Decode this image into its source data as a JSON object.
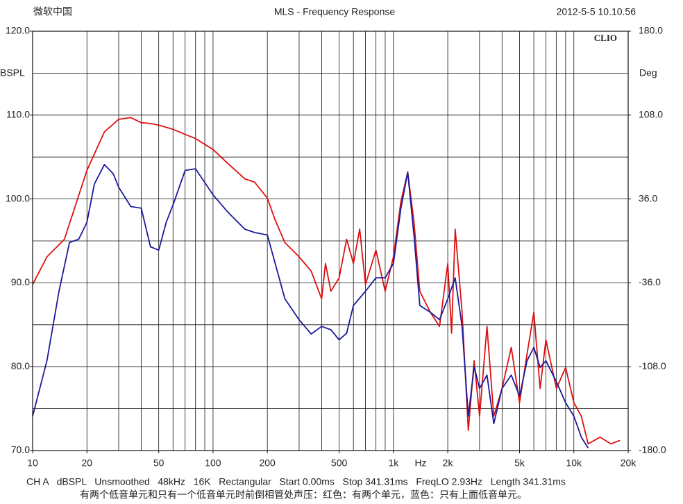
{
  "chart_data": {
    "type": "line",
    "title": "MLS - Frequency Response",
    "header_left": "微软中国",
    "header_right": "2012-5-5 10.10.56",
    "brand": "CLIO",
    "ylabel": "BSPL",
    "y2label": "Deg",
    "xlabel": "Hz",
    "xscale": "log",
    "xlim": [
      10,
      20000
    ],
    "xticks": [
      10,
      20,
      50,
      100,
      200,
      500,
      {
        "value": 1000,
        "label": "1k"
      },
      {
        "value": 2000,
        "label": "2k"
      },
      {
        "value": 5000,
        "label": "5k"
      },
      {
        "value": 10000,
        "label": "10k"
      },
      {
        "value": 20000,
        "label": "20k"
      }
    ],
    "xgrid": [
      10,
      20,
      30,
      40,
      50,
      60,
      70,
      80,
      90,
      100,
      200,
      300,
      400,
      500,
      600,
      700,
      800,
      900,
      1000,
      2000,
      3000,
      4000,
      5000,
      6000,
      7000,
      8000,
      9000,
      10000,
      20000
    ],
    "ylim": [
      70,
      120
    ],
    "yticks": [
      {
        "value": 70,
        "label": "70.0"
      },
      {
        "value": 80,
        "label": "80.0"
      },
      {
        "value": 90,
        "label": "90.0"
      },
      {
        "value": 100,
        "label": "100.0"
      },
      {
        "value": 110,
        "label": "110.0"
      },
      {
        "value": 120,
        "label": "120.0"
      }
    ],
    "ygrid": [
      70,
      75,
      80,
      85,
      90,
      95,
      100,
      105,
      110,
      115,
      120
    ],
    "y2lim": [
      -180,
      180
    ],
    "y2ticks": [
      {
        "value": -180,
        "label": "-180.0"
      },
      {
        "value": -108,
        "label": "-108.0"
      },
      {
        "value": -36,
        "label": "-36.0"
      },
      {
        "value": 36,
        "label": "36.0"
      },
      {
        "value": 108,
        "label": "108.0"
      },
      {
        "value": 180,
        "label": "180.0"
      }
    ],
    "grid": true,
    "footer": "CH A   dBSPL   Unsmoothed   48kHz   16K   Rectangular   Start 0.00ms   Stop 341.31ms   FreqLO 2.93Hz   Length 341.31ms",
    "caption": "有两个低音单元和只有一个低音单元时前倒相管处声压：红色：有两个单元，蓝色：只有上面低音单元。",
    "series": [
      {
        "color": "#dd1111",
        "x": [
          10,
          12,
          15,
          20,
          25,
          30,
          35,
          40,
          45,
          50,
          60,
          70,
          80,
          100,
          120,
          150,
          170,
          200,
          220,
          250,
          300,
          350,
          400,
          420,
          450,
          500,
          550,
          600,
          650,
          700,
          800,
          900,
          1000,
          1100,
          1200,
          1300,
          1400,
          1600,
          1800,
          2000,
          2100,
          2200,
          2400,
          2600,
          2800,
          3000,
          3300,
          3600,
          4000,
          4500,
          5000,
          5500,
          6000,
          6500,
          7000,
          8000,
          9000,
          10000,
          11000,
          12000,
          14000,
          16000,
          18000
        ],
        "values": [
          89.8,
          93.1,
          95.2,
          103.4,
          108,
          109.5,
          109.7,
          109.1,
          109,
          108.8,
          108.3,
          107.7,
          107.2,
          105.9,
          104.3,
          102.4,
          102,
          100.1,
          97.6,
          94.8,
          93.1,
          91.4,
          88.1,
          92.3,
          89.0,
          90.6,
          95.2,
          92.3,
          96.4,
          89.8,
          93.9,
          89.0,
          93.1,
          99.7,
          103.2,
          97.2,
          89.0,
          86.5,
          84.8,
          92.3,
          84.0,
          96.4,
          86.5,
          72.4,
          80.7,
          74.1,
          84.8,
          74.1,
          77.4,
          82.3,
          75.7,
          81.5,
          86.5,
          77.4,
          83.2,
          77.4,
          79.9,
          75.7,
          74.1,
          70.8,
          71.6,
          70.8,
          71.2
        ]
      },
      {
        "color": "#1a1a9c",
        "x": [
          10,
          12,
          14,
          16,
          18,
          20,
          22,
          25,
          28,
          30,
          35,
          40,
          45,
          50,
          55,
          60,
          70,
          80,
          100,
          120,
          150,
          170,
          200,
          250,
          300,
          350,
          400,
          450,
          500,
          550,
          600,
          700,
          800,
          900,
          1000,
          1100,
          1200,
          1300,
          1400,
          1600,
          1800,
          2000,
          2200,
          2400,
          2600,
          2800,
          3000,
          3300,
          3600,
          4000,
          4500,
          5000,
          5500,
          6000,
          6500,
          7000,
          8000,
          9000,
          10000,
          11000,
          12000
        ],
        "values": [
          74.1,
          80.7,
          89.0,
          94.8,
          95.2,
          97.2,
          101.8,
          104.1,
          103.0,
          101.4,
          99.1,
          98.9,
          94.3,
          93.9,
          97.2,
          99.3,
          103.4,
          103.6,
          100.5,
          98.5,
          96.4,
          96.0,
          95.7,
          88.1,
          85.6,
          83.9,
          84.8,
          84.4,
          83.2,
          84.0,
          87.3,
          89.0,
          90.6,
          90.6,
          92.3,
          98.9,
          103.2,
          95.6,
          87.3,
          86.5,
          85.6,
          88.1,
          90.6,
          84.8,
          74.1,
          80.0,
          77.4,
          79.0,
          73.2,
          77.4,
          79.0,
          76.5,
          80.7,
          82.3,
          79.9,
          80.7,
          78.2,
          75.7,
          74.1,
          71.6,
          70.3
        ]
      }
    ]
  }
}
